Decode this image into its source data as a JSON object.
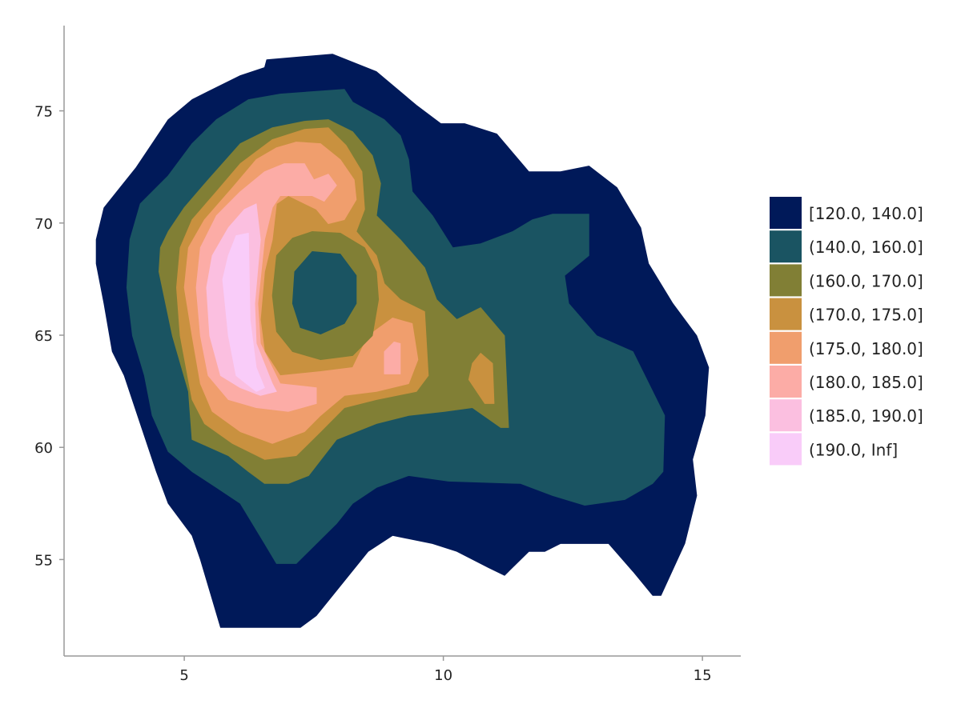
{
  "chart_data": {
    "type": "contourf",
    "title": "",
    "xlabel": "",
    "ylabel": "",
    "xlim": [
      2.68,
      15.74
    ],
    "ylim": [
      50.7,
      78.8
    ],
    "xticks": [
      5,
      10,
      15
    ],
    "yticks": [
      55,
      60,
      65,
      70,
      75
    ],
    "grid": false,
    "legend_position": "right",
    "levels": [
      {
        "label": "[120.0, 140.0]",
        "color": "#001959"
      },
      {
        "label": "(140.0, 160.0]",
        "color": "#1a5462"
      },
      {
        "label": "(160.0, 170.0]",
        "color": "#817f35"
      },
      {
        "label": "(170.0, 175.0]",
        "color": "#c9913f"
      },
      {
        "label": "(175.0, 180.0]",
        "color": "#f09e6d"
      },
      {
        "label": "(180.0, 185.0]",
        "color": "#fcaca6"
      },
      {
        "label": "(185.0, 190.0]",
        "color": "#fbbfe0"
      },
      {
        "label": "(190.0, Inf]",
        "color": "#f9ccf9"
      }
    ],
    "regions": [
      {
        "level": 0,
        "points": [
          [
            6.59,
            77.28
          ],
          [
            7.86,
            77.53
          ],
          [
            8.71,
            76.75
          ],
          [
            9.48,
            75.25
          ],
          [
            9.95,
            74.43
          ],
          [
            10.41,
            74.43
          ],
          [
            11.03,
            73.97
          ],
          [
            11.65,
            72.29
          ],
          [
            12.26,
            72.29
          ],
          [
            12.81,
            72.54
          ],
          [
            13.35,
            71.58
          ],
          [
            13.81,
            69.79
          ],
          [
            13.96,
            68.19
          ],
          [
            14.43,
            66.41
          ],
          [
            14.89,
            64.98
          ],
          [
            15.12,
            63.56
          ],
          [
            15.05,
            61.42
          ],
          [
            14.81,
            59.46
          ],
          [
            14.89,
            57.85
          ],
          [
            14.66,
            55.71
          ],
          [
            14.2,
            53.4
          ],
          [
            14.04,
            53.4
          ],
          [
            13.66,
            54.47
          ],
          [
            13.19,
            55.71
          ],
          [
            12.26,
            55.71
          ],
          [
            11.96,
            55.36
          ],
          [
            11.65,
            55.36
          ],
          [
            11.18,
            54.29
          ],
          [
            10.87,
            54.64
          ],
          [
            10.26,
            55.36
          ],
          [
            9.79,
            55.71
          ],
          [
            9.02,
            56.07
          ],
          [
            8.55,
            55.36
          ],
          [
            7.55,
            52.5
          ],
          [
            7.24,
            51.97
          ],
          [
            5.7,
            51.97
          ],
          [
            5.54,
            53.22
          ],
          [
            5.31,
            55.0
          ],
          [
            5.15,
            56.07
          ],
          [
            4.69,
            57.5
          ],
          [
            4.46,
            58.92
          ],
          [
            4.15,
            61.06
          ],
          [
            3.84,
            63.2
          ],
          [
            3.61,
            64.27
          ],
          [
            3.45,
            66.41
          ],
          [
            3.3,
            68.19
          ],
          [
            3.3,
            69.26
          ],
          [
            3.45,
            70.68
          ],
          [
            3.76,
            71.58
          ],
          [
            4.07,
            72.47
          ],
          [
            4.38,
            73.54
          ],
          [
            4.69,
            74.61
          ],
          [
            5.15,
            75.5
          ],
          [
            5.46,
            75.86
          ],
          [
            6.08,
            76.57
          ],
          [
            6.55,
            76.93
          ]
        ]
      },
      {
        "level": 1,
        "points": [
          [
            6.85,
            75.75
          ],
          [
            8.09,
            75.96
          ],
          [
            8.25,
            75.39
          ],
          [
            8.86,
            74.61
          ],
          [
            9.17,
            73.9
          ],
          [
            9.33,
            72.83
          ],
          [
            9.4,
            71.4
          ],
          [
            9.79,
            70.33
          ],
          [
            10.18,
            68.9
          ],
          [
            10.72,
            69.08
          ],
          [
            11.34,
            69.62
          ],
          [
            11.72,
            70.15
          ],
          [
            12.11,
            70.4
          ],
          [
            12.81,
            70.4
          ],
          [
            12.81,
            68.55
          ],
          [
            12.34,
            67.66
          ],
          [
            12.42,
            66.41
          ],
          [
            12.96,
            64.98
          ],
          [
            13.66,
            64.27
          ],
          [
            13.89,
            63.2
          ],
          [
            14.27,
            61.42
          ],
          [
            14.24,
            58.92
          ],
          [
            14.04,
            58.39
          ],
          [
            13.5,
            57.67
          ],
          [
            12.73,
            57.42
          ],
          [
            12.11,
            57.85
          ],
          [
            11.49,
            58.39
          ],
          [
            10.1,
            58.49
          ],
          [
            9.33,
            58.74
          ],
          [
            8.71,
            58.21
          ],
          [
            8.25,
            57.5
          ],
          [
            7.94,
            56.6
          ],
          [
            7.55,
            55.71
          ],
          [
            7.16,
            54.82
          ],
          [
            6.78,
            54.82
          ],
          [
            6.55,
            55.71
          ],
          [
            6.08,
            57.5
          ],
          [
            5.62,
            58.21
          ],
          [
            5.15,
            58.92
          ],
          [
            4.69,
            59.81
          ],
          [
            4.38,
            61.42
          ],
          [
            4.23,
            63.2
          ],
          [
            4.0,
            64.98
          ],
          [
            3.89,
            67.12
          ],
          [
            3.95,
            69.26
          ],
          [
            4.15,
            70.86
          ],
          [
            4.69,
            72.11
          ],
          [
            5.15,
            73.54
          ],
          [
            5.62,
            74.61
          ],
          [
            6.24,
            75.5
          ]
        ]
      },
      {
        "level": 2,
        "points": [
          [
            7.32,
            74.54
          ],
          [
            7.78,
            74.61
          ],
          [
            8.25,
            74.07
          ],
          [
            8.63,
            73.01
          ],
          [
            8.79,
            71.76
          ],
          [
            8.71,
            70.33
          ],
          [
            9.17,
            69.26
          ],
          [
            9.64,
            68.01
          ],
          [
            9.87,
            66.59
          ],
          [
            10.26,
            65.7
          ],
          [
            10.72,
            66.23
          ],
          [
            11.18,
            64.98
          ],
          [
            11.26,
            60.88
          ],
          [
            11.11,
            60.88
          ],
          [
            10.56,
            61.77
          ],
          [
            10.02,
            61.6
          ],
          [
            9.33,
            61.42
          ],
          [
            8.71,
            61.06
          ],
          [
            7.94,
            60.35
          ],
          [
            7.4,
            58.74
          ],
          [
            7.01,
            58.39
          ],
          [
            6.55,
            58.39
          ],
          [
            6.24,
            58.92
          ],
          [
            5.85,
            59.63
          ],
          [
            5.15,
            60.35
          ],
          [
            5.08,
            62.49
          ],
          [
            4.77,
            64.98
          ],
          [
            4.51,
            67.83
          ],
          [
            4.54,
            68.9
          ],
          [
            4.69,
            69.62
          ],
          [
            5.0,
            70.69
          ],
          [
            5.46,
            71.93
          ],
          [
            6.08,
            73.54
          ],
          [
            6.7,
            74.25
          ]
        ]
      },
      {
        "level": 3,
        "points": [
          [
            7.32,
            74.18
          ],
          [
            7.78,
            74.25
          ],
          [
            8.12,
            73.47
          ],
          [
            8.43,
            72.29
          ],
          [
            8.48,
            70.61
          ],
          [
            8.32,
            69.62
          ],
          [
            8.71,
            68.55
          ],
          [
            8.86,
            67.3
          ],
          [
            9.17,
            66.59
          ],
          [
            9.64,
            66.05
          ],
          [
            9.71,
            63.2
          ],
          [
            9.48,
            62.49
          ],
          [
            8.71,
            62.13
          ],
          [
            8.09,
            61.77
          ],
          [
            7.63,
            60.7
          ],
          [
            7.16,
            59.63
          ],
          [
            6.55,
            59.46
          ],
          [
            5.93,
            60.17
          ],
          [
            5.39,
            61.06
          ],
          [
            5.15,
            62.13
          ],
          [
            4.92,
            64.98
          ],
          [
            4.85,
            67.12
          ],
          [
            4.92,
            68.9
          ],
          [
            5.15,
            70.15
          ],
          [
            5.62,
            71.4
          ],
          [
            6.08,
            72.65
          ],
          [
            6.7,
            73.72
          ]
        ]
      },
      {
        "level": 3,
        "points": [
          [
            10.72,
            64.2
          ],
          [
            10.95,
            63.74
          ],
          [
            10.98,
            61.95
          ],
          [
            10.8,
            61.95
          ],
          [
            10.49,
            63.02
          ],
          [
            10.56,
            63.74
          ]
        ]
      },
      {
        "level": 4,
        "points": [
          [
            7.16,
            73.61
          ],
          [
            7.63,
            73.54
          ],
          [
            8.01,
            72.83
          ],
          [
            8.28,
            71.93
          ],
          [
            8.32,
            71.04
          ],
          [
            8.09,
            70.15
          ],
          [
            7.78,
            69.97
          ],
          [
            7.55,
            70.61
          ],
          [
            7.01,
            71.22
          ],
          [
            6.78,
            70.86
          ],
          [
            6.7,
            69.26
          ],
          [
            6.55,
            67.83
          ],
          [
            6.47,
            65.7
          ],
          [
            6.55,
            64.27
          ],
          [
            6.85,
            63.2
          ],
          [
            7.63,
            63.38
          ],
          [
            8.25,
            63.56
          ],
          [
            8.55,
            64.98
          ],
          [
            9.02,
            65.77
          ],
          [
            9.4,
            65.52
          ],
          [
            9.51,
            63.91
          ],
          [
            9.33,
            62.84
          ],
          [
            8.71,
            62.49
          ],
          [
            8.09,
            62.31
          ],
          [
            7.63,
            61.42
          ],
          [
            7.32,
            60.7
          ],
          [
            6.7,
            60.17
          ],
          [
            6.08,
            60.7
          ],
          [
            5.54,
            61.6
          ],
          [
            5.31,
            62.84
          ],
          [
            5.15,
            64.98
          ],
          [
            5.0,
            67.12
          ],
          [
            5.08,
            68.9
          ],
          [
            5.39,
            70.15
          ],
          [
            5.93,
            71.58
          ],
          [
            6.39,
            72.83
          ],
          [
            6.78,
            73.36
          ]
        ]
      },
      {
        "level": 5,
        "points": [
          [
            6.93,
            72.65
          ],
          [
            7.32,
            72.65
          ],
          [
            7.5,
            71.93
          ],
          [
            7.78,
            72.18
          ],
          [
            7.94,
            71.68
          ],
          [
            7.7,
            70.97
          ],
          [
            7.47,
            71.22
          ],
          [
            6.85,
            71.22
          ],
          [
            6.7,
            70.69
          ],
          [
            6.55,
            69.26
          ],
          [
            6.42,
            66.41
          ],
          [
            6.47,
            64.63
          ],
          [
            6.85,
            62.84
          ],
          [
            7.55,
            62.66
          ],
          [
            7.55,
            61.95
          ],
          [
            7.01,
            61.6
          ],
          [
            6.39,
            61.77
          ],
          [
            5.85,
            62.13
          ],
          [
            5.46,
            63.2
          ],
          [
            5.31,
            64.98
          ],
          [
            5.23,
            67.12
          ],
          [
            5.31,
            68.9
          ],
          [
            5.62,
            70.33
          ],
          [
            6.08,
            71.4
          ],
          [
            6.55,
            72.29
          ]
        ]
      },
      {
        "level": 5,
        "points": [
          [
            8.86,
            64.27
          ],
          [
            9.05,
            64.7
          ],
          [
            9.17,
            64.63
          ],
          [
            9.17,
            63.27
          ],
          [
            8.86,
            63.27
          ]
        ]
      },
      {
        "level": 6,
        "points": [
          [
            6.39,
            70.86
          ],
          [
            6.47,
            69.26
          ],
          [
            6.36,
            66.41
          ],
          [
            6.39,
            64.63
          ],
          [
            6.7,
            62.84
          ],
          [
            6.78,
            62.49
          ],
          [
            6.47,
            62.31
          ],
          [
            6.08,
            62.66
          ],
          [
            5.7,
            63.2
          ],
          [
            5.49,
            64.98
          ],
          [
            5.43,
            67.12
          ],
          [
            5.54,
            68.55
          ],
          [
            5.85,
            69.79
          ],
          [
            6.16,
            70.61
          ]
        ]
      },
      {
        "level": 7,
        "points": [
          [
            6.0,
            69.44
          ],
          [
            6.24,
            69.55
          ],
          [
            6.27,
            65.7
          ],
          [
            6.39,
            63.56
          ],
          [
            6.55,
            62.66
          ],
          [
            6.39,
            62.49
          ],
          [
            6.0,
            63.2
          ],
          [
            5.85,
            64.98
          ],
          [
            5.74,
            67.48
          ],
          [
            5.85,
            68.55
          ]
        ]
      },
      {
        "level": 2,
        "points": [
          [
            7.47,
            69.62
          ],
          [
            8.01,
            69.55
          ],
          [
            8.48,
            68.9
          ],
          [
            8.71,
            67.83
          ],
          [
            8.75,
            66.59
          ],
          [
            8.63,
            64.98
          ],
          [
            8.25,
            64.09
          ],
          [
            7.63,
            63.91
          ],
          [
            7.09,
            64.27
          ],
          [
            6.78,
            65.16
          ],
          [
            6.7,
            66.77
          ],
          [
            6.78,
            68.55
          ],
          [
            7.09,
            69.33
          ]
        ]
      },
      {
        "level": 1,
        "points": [
          [
            7.47,
            68.73
          ],
          [
            8.01,
            68.62
          ],
          [
            8.32,
            67.66
          ],
          [
            8.32,
            66.41
          ],
          [
            8.09,
            65.52
          ],
          [
            7.63,
            65.05
          ],
          [
            7.24,
            65.34
          ],
          [
            7.09,
            66.41
          ],
          [
            7.13,
            67.83
          ]
        ]
      }
    ]
  }
}
